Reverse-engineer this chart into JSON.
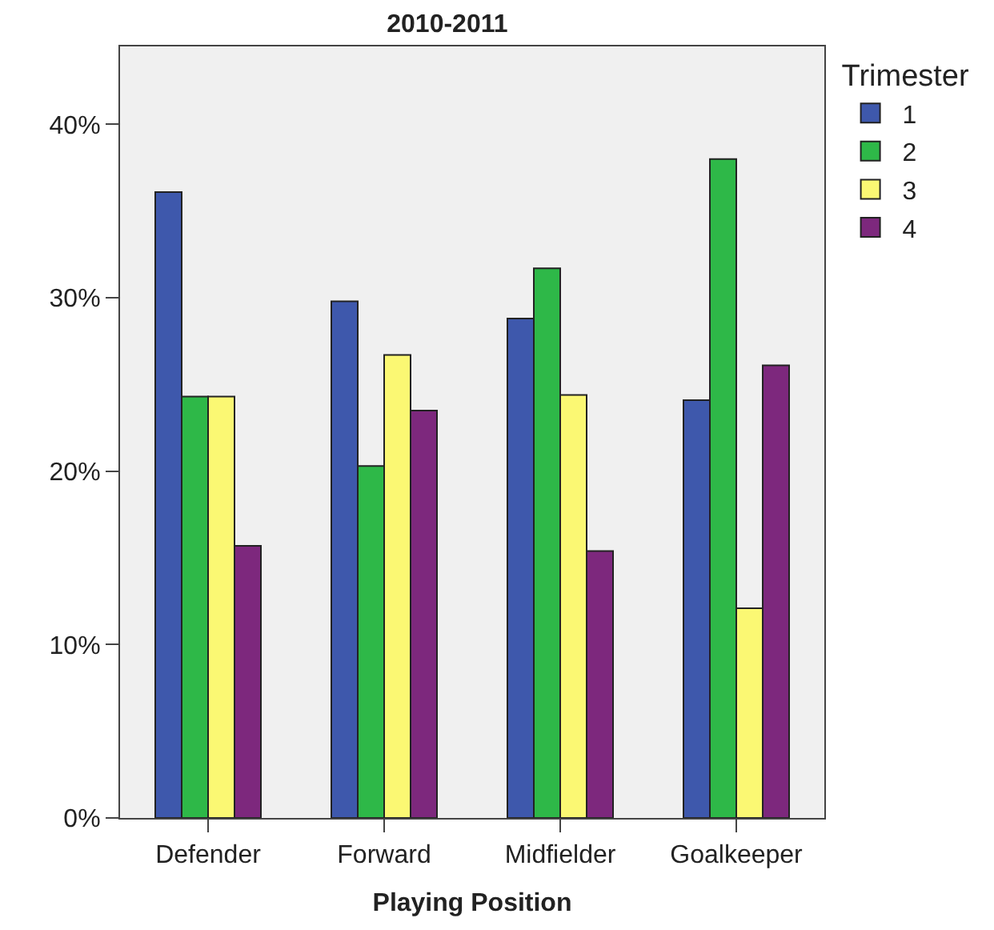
{
  "chart_data": {
    "type": "bar",
    "title": "2010-2011",
    "xlabel": "Playing Position",
    "legend_title": "Trimester",
    "categories": [
      "Defender",
      "Forward",
      "Midfielder",
      "Goalkeeper"
    ],
    "series": [
      {
        "name": "1",
        "color": "#3e58ac",
        "values": [
          36.1,
          29.8,
          28.8,
          24.1
        ]
      },
      {
        "name": "2",
        "color": "#2eb848",
        "values": [
          24.3,
          20.3,
          31.7,
          38.0
        ]
      },
      {
        "name": "3",
        "color": "#fbf873",
        "values": [
          24.3,
          26.7,
          24.4,
          12.1
        ]
      },
      {
        "name": "4",
        "color": "#7d287d",
        "values": [
          15.7,
          23.5,
          15.4,
          26.1
        ]
      }
    ],
    "ylim": [
      0,
      44.5
    ],
    "yticks": [
      {
        "value": 0,
        "label": "0%"
      },
      {
        "value": 10,
        "label": "10%"
      },
      {
        "value": 20,
        "label": "20%"
      },
      {
        "value": 30,
        "label": "30%"
      },
      {
        "value": 40,
        "label": "40%"
      }
    ],
    "grid": false,
    "legend": "top right"
  }
}
